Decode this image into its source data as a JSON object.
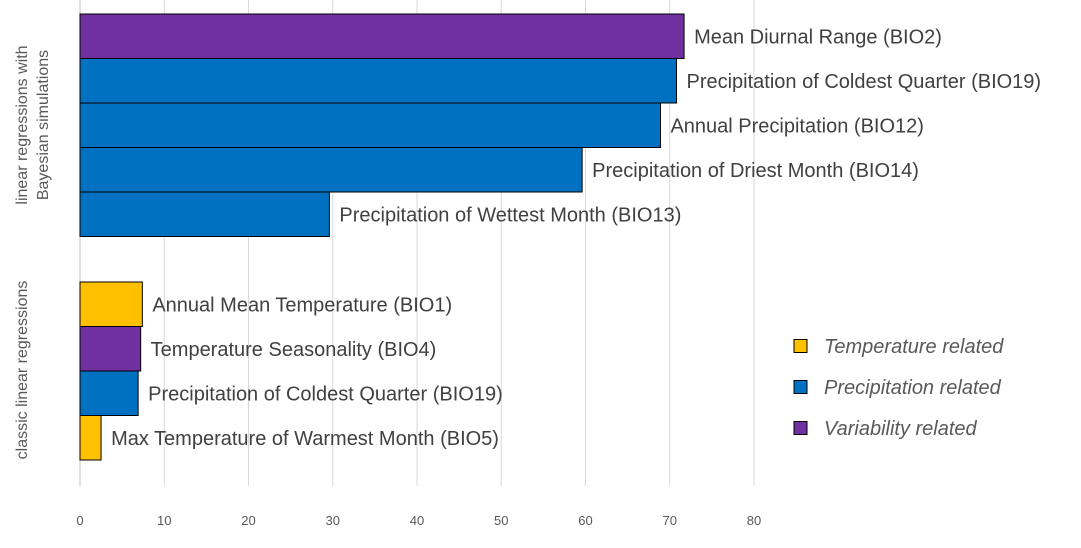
{
  "chart_data": {
    "type": "bar",
    "orientation": "horizontal",
    "title": "",
    "xlabel": "",
    "ylabel": "",
    "xlim": [
      0,
      80
    ],
    "x_ticks": [
      0,
      10,
      20,
      30,
      40,
      50,
      60,
      70,
      80
    ],
    "grid": "vertical",
    "legend_position": "right",
    "groups": [
      {
        "name": "linear regressions with Bayesian simulations",
        "name_lines": [
          "linear regressions with",
          "Bayesian  simulations"
        ],
        "bars": [
          {
            "label": "Mean Diurnal Range (BIO2)",
            "value": 71.7,
            "category": "variability"
          },
          {
            "label": "Precipitation of Coldest Quarter (BIO19)",
            "value": 70.8,
            "category": "precipitation"
          },
          {
            "label": "Annual Precipitation (BIO12)",
            "value": 68.9,
            "category": "precipitation"
          },
          {
            "label": "Precipitation of Driest Month (BIO14)",
            "value": 59.6,
            "category": "precipitation"
          },
          {
            "label": "Precipitation of Wettest Month (BIO13)",
            "value": 29.6,
            "category": "precipitation"
          }
        ]
      },
      {
        "name": "classic linear regressions",
        "name_lines": [
          "classic linear regressions"
        ],
        "bars": [
          {
            "label": "Annual Mean Temperature (BIO1)",
            "value": 7.4,
            "category": "temperature"
          },
          {
            "label": "Temperature Seasonality (BIO4)",
            "value": 7.2,
            "category": "variability"
          },
          {
            "label": "Precipitation of Coldest Quarter (BIO19)",
            "value": 6.9,
            "category": "precipitation"
          },
          {
            "label": "Max Temperature of Warmest Month (BIO5)",
            "value": 2.5,
            "category": "temperature"
          }
        ]
      }
    ],
    "legend": [
      {
        "key": "temperature",
        "label": "Temperature  related",
        "color": "#FFC000"
      },
      {
        "key": "precipitation",
        "label": "Precipitation  related",
        "color": "#0070C0"
      },
      {
        "key": "variability",
        "label": "Variability  related",
        "color": "#7030A0"
      }
    ]
  }
}
